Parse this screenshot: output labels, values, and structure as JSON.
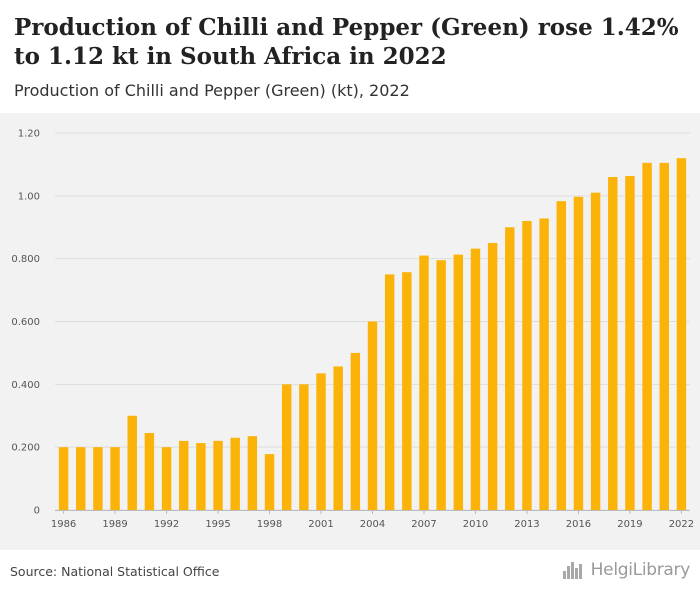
{
  "header": {
    "title": "Production of Chilli and Pepper (Green) rose 1.42% to 1.12 kt in South Africa in 2022",
    "subtitle": "Production of Chilli and Pepper (Green) (kt), 2022"
  },
  "footer": {
    "source": "Source: National Statistical Office",
    "logo_text": "HelgiLibrary"
  },
  "colors": {
    "bar": "#fbb30a",
    "grid": "#dddddd",
    "plot_bg": "#f2f2f2",
    "axis_text": "#555555"
  },
  "chart_data": {
    "type": "bar",
    "title": "Production of Chilli and Pepper (Green) (kt), 2022",
    "categories": [
      1986,
      1987,
      1988,
      1989,
      1990,
      1991,
      1992,
      1993,
      1994,
      1995,
      1996,
      1997,
      1998,
      1999,
      2000,
      2001,
      2002,
      2003,
      2004,
      2005,
      2006,
      2007,
      2008,
      2009,
      2010,
      2011,
      2012,
      2013,
      2014,
      2015,
      2016,
      2017,
      2018,
      2019,
      2020,
      2021,
      2022
    ],
    "values": [
      0.2,
      0.2,
      0.2,
      0.2,
      0.3,
      0.245,
      0.2,
      0.22,
      0.213,
      0.22,
      0.23,
      0.235,
      0.178,
      0.4,
      0.4,
      0.435,
      0.457,
      0.5,
      0.6,
      0.75,
      0.757,
      0.81,
      0.795,
      0.813,
      0.832,
      0.85,
      0.9,
      0.92,
      0.928,
      0.983,
      0.997,
      1.01,
      1.06,
      1.063,
      1.105,
      1.105,
      1.12
    ],
    "x_tick_labels": [
      "1986",
      "1989",
      "1992",
      "1995",
      "1998",
      "2001",
      "2004",
      "2007",
      "2010",
      "2013",
      "2016",
      "2019",
      "2022"
    ],
    "y_ticks": [
      0,
      0.2,
      0.4,
      0.6,
      0.8,
      1.0,
      1.2
    ],
    "y_tick_labels": [
      "0",
      "0.200",
      "0.400",
      "0.600",
      "0.800",
      "1.00",
      "1.20"
    ],
    "ylim": [
      0,
      1.2
    ],
    "xlabel": "",
    "ylabel": "",
    "grid": true,
    "legend": "none"
  }
}
